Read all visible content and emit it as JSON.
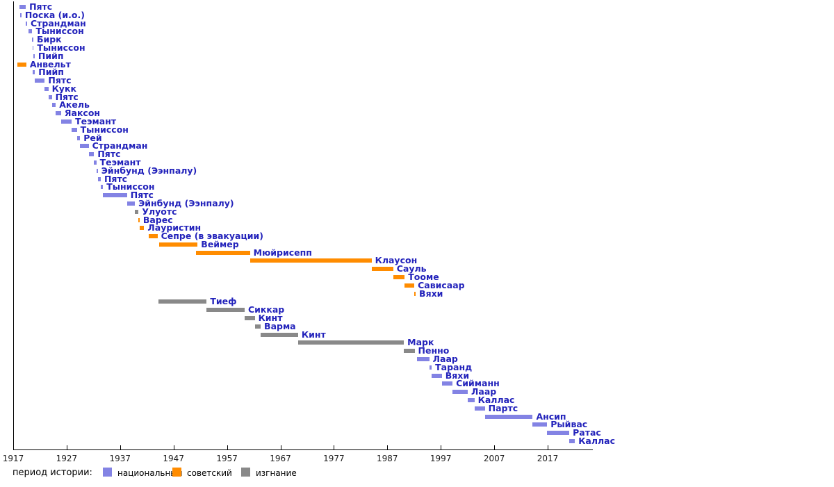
{
  "chart_data": {
    "type": "bar",
    "subtype": "gantt-timeline",
    "title": "",
    "xlabel": "",
    "ylabel": "",
    "axis": {
      "unit": "year",
      "min": 1917,
      "max": 2026,
      "ticks": [
        1917,
        1927,
        1937,
        1947,
        1957,
        1967,
        1977,
        1987,
        1997,
        2007,
        2017
      ],
      "position": "bottom",
      "grid": false
    },
    "label_color": "#2323bb",
    "period_colors": {
      "national": "#8383e4",
      "soviet": "#ff8c00",
      "exile": "#898989"
    },
    "people": [
      {
        "label": "Пятс",
        "period": "national",
        "start": 1918.15,
        "end": 1919.35
      },
      {
        "label": "Поска (и.о.)",
        "period": "national",
        "start": 1918.35,
        "end": 1918.55
      },
      {
        "label": "Страндман",
        "period": "national",
        "start": 1919.4,
        "end": 1919.6
      },
      {
        "label": "Тыниссон",
        "period": "national",
        "start": 1919.88,
        "end": 1920.57
      },
      {
        "label": "Бирк",
        "period": "national",
        "start": 1920.57,
        "end": 1920.62
      },
      {
        "label": "Тыниссон",
        "period": "national",
        "start": 1920.62,
        "end": 1920.82
      },
      {
        "label": "Пийп",
        "period": "national",
        "start": 1920.82,
        "end": 1920.99
      },
      {
        "label": "Анвельт",
        "period": "soviet",
        "start": 1917.8,
        "end": 1919.45
      },
      {
        "label": "Пийп",
        "period": "national",
        "start": 1920.6,
        "end": 1921.07
      },
      {
        "label": "Пятс",
        "period": "national",
        "start": 1921.07,
        "end": 1922.9
      },
      {
        "label": "Кукк",
        "period": "national",
        "start": 1922.9,
        "end": 1923.58
      },
      {
        "label": "Пятс",
        "period": "national",
        "start": 1923.58,
        "end": 1924.23
      },
      {
        "label": "Акель",
        "period": "national",
        "start": 1924.23,
        "end": 1924.96
      },
      {
        "label": "Яаксон",
        "period": "national",
        "start": 1924.96,
        "end": 1925.96
      },
      {
        "label": "Теэмант",
        "period": "national",
        "start": 1925.96,
        "end": 1927.94
      },
      {
        "label": "Тыниссон",
        "period": "national",
        "start": 1927.94,
        "end": 1928.92
      },
      {
        "label": "Рей",
        "period": "national",
        "start": 1928.92,
        "end": 1929.52
      },
      {
        "label": "Страндман",
        "period": "national",
        "start": 1929.52,
        "end": 1931.12
      },
      {
        "label": "Пятс",
        "period": "national",
        "start": 1931.12,
        "end": 1932.13
      },
      {
        "label": "Теэмант",
        "period": "national",
        "start": 1932.13,
        "end": 1932.55
      },
      {
        "label": "Эйнбунд (Ээнпалу)",
        "period": "national",
        "start": 1932.55,
        "end": 1932.83
      },
      {
        "label": "Пятс",
        "period": "national",
        "start": 1932.83,
        "end": 1933.38
      },
      {
        "label": "Тыниссон",
        "period": "national",
        "start": 1933.38,
        "end": 1933.8
      },
      {
        "label": "Пятс",
        "period": "national",
        "start": 1933.8,
        "end": 1938.3
      },
      {
        "label": "Эйнбунд (Ээнпалу)",
        "period": "national",
        "start": 1938.3,
        "end": 1939.77
      },
      {
        "label": "Улуотс",
        "period": "exile",
        "start": 1939.77,
        "end": 1940.45
      },
      {
        "label": "Варес",
        "period": "soviet",
        "start": 1940.45,
        "end": 1940.63
      },
      {
        "label": "Лауристин",
        "period": "soviet",
        "start": 1940.63,
        "end": 1941.5
      },
      {
        "label": "Сепре (в эвакуации)",
        "period": "soviet",
        "start": 1942.3,
        "end": 1944.0
      },
      {
        "label": "Веймер",
        "period": "soviet",
        "start": 1944.3,
        "end": 1951.5
      },
      {
        "label": "Мюйрисепп",
        "period": "soviet",
        "start": 1951.2,
        "end": 1961.3
      },
      {
        "label": "Клаусон",
        "period": "soviet",
        "start": 1961.3,
        "end": 1984.05
      },
      {
        "label": "Сауль",
        "period": "soviet",
        "start": 1984.05,
        "end": 1988.1
      },
      {
        "label": "Тооме",
        "period": "soviet",
        "start": 1988.1,
        "end": 1990.25
      },
      {
        "label": "Сависаар",
        "period": "soviet",
        "start": 1990.25,
        "end": 1992.05
      },
      {
        "label": "Вяхи",
        "period": "soviet",
        "start": 1992.05,
        "end": 1992.3
      },
      {
        "label": "Тиеф",
        "period": "exile",
        "start": 1944.15,
        "end": 1953.2
      },
      {
        "label": "Сиккар",
        "period": "exile",
        "start": 1953.2,
        "end": 1960.3
      },
      {
        "label": "Кинт",
        "period": "exile",
        "start": 1960.3,
        "end": 1962.2
      },
      {
        "label": "Варма",
        "period": "exile",
        "start": 1962.2,
        "end": 1963.3
      },
      {
        "label": "Кинт",
        "period": "exile",
        "start": 1963.3,
        "end": 1970.3
      },
      {
        "label": "Марк",
        "period": "exile",
        "start": 1970.3,
        "end": 1990.1
      },
      {
        "label": "Пенно",
        "period": "exile",
        "start": 1990.1,
        "end": 1992.1
      },
      {
        "label": "Лаар",
        "period": "national",
        "start": 1992.6,
        "end": 1994.85
      },
      {
        "label": "Таранд",
        "period": "national",
        "start": 1994.85,
        "end": 1995.3
      },
      {
        "label": "Вяхи",
        "period": "national",
        "start": 1995.3,
        "end": 1997.2
      },
      {
        "label": "Сийманн",
        "period": "national",
        "start": 1997.2,
        "end": 1999.2
      },
      {
        "label": "Лаар",
        "period": "national",
        "start": 1999.2,
        "end": 2002.05
      },
      {
        "label": "Каллас",
        "period": "national",
        "start": 2002.05,
        "end": 2003.3
      },
      {
        "label": "Партс",
        "period": "national",
        "start": 2003.3,
        "end": 2005.25
      },
      {
        "label": "Ансип",
        "period": "national",
        "start": 2005.25,
        "end": 2014.2
      },
      {
        "label": "Рыйвас",
        "period": "national",
        "start": 2014.2,
        "end": 2016.9
      },
      {
        "label": "Ратас",
        "period": "national",
        "start": 2016.9,
        "end": 2021.05
      },
      {
        "label": "Каллас",
        "period": "national",
        "start": 2021.05,
        "end": 2022.1
      }
    ]
  },
  "legend": {
    "title": "период истории:",
    "items": [
      {
        "key": "national",
        "label": "национальный",
        "color": "#8383e4"
      },
      {
        "key": "soviet",
        "label": "советский",
        "color": "#ff8c00"
      },
      {
        "key": "exile",
        "label": "изгнание",
        "color": "#898989"
      }
    ]
  }
}
